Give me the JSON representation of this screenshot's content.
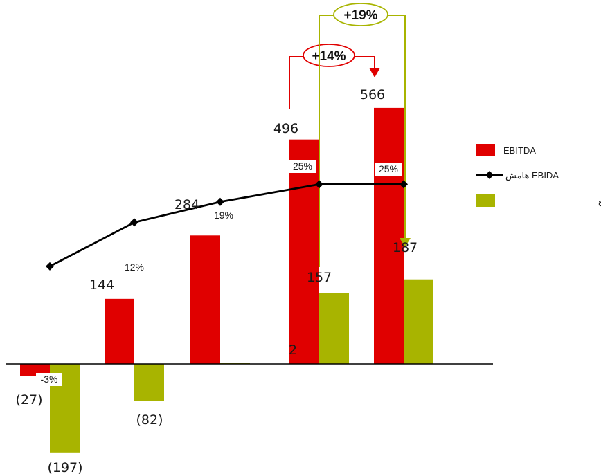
{
  "colors": {
    "ebitda": "#e00000",
    "distributable": "#a8b400",
    "margin_line": "#000000",
    "axis": "#000000",
    "label_bg": "#ffffff"
  },
  "legend": {
    "position": "right",
    "items": [
      {
        "label": "EBITDA",
        "marker": "bar",
        "color_key": "ebitda"
      },
      {
        "label": "هامش EBIDA",
        "marker": "line-diamond",
        "color_key": "margin_line"
      },
      {
        "label": "الأرباح القابلة للتوزيع",
        "marker": "bar",
        "color_key": "distributable"
      }
    ]
  },
  "chart_data": {
    "type": "bar",
    "categories": [
      "",
      "",
      "",
      "",
      ""
    ],
    "series": [
      {
        "name": "EBITDA",
        "color_key": "ebitda",
        "values": [
          -27,
          144,
          284,
          496,
          566
        ],
        "labels": [
          "(27)",
          "144",
          "284",
          "496",
          "566"
        ]
      },
      {
        "name": "الأرباح القابلة للتوزيع",
        "color_key": "distributable",
        "values": [
          -197,
          -82,
          2,
          157,
          187
        ],
        "labels": [
          "(197)",
          "(82)",
          "2",
          "157",
          "187"
        ]
      }
    ],
    "line_series": {
      "name": "هامش EBIDA",
      "values": [
        -3,
        12,
        19,
        25,
        25
      ],
      "labels": [
        "-3%",
        "12%",
        "19%",
        "25%",
        "25%"
      ]
    },
    "annotations": [
      {
        "text": "+14%",
        "from_index": 3,
        "to_index": 4,
        "series": "EBITDA",
        "color_key": "ebitda"
      },
      {
        "text": "+19%",
        "from_index": 3,
        "to_index": 4,
        "series": "الأرباح القابلة للتوزيع",
        "color_key": "distributable"
      }
    ],
    "grid": false
  }
}
